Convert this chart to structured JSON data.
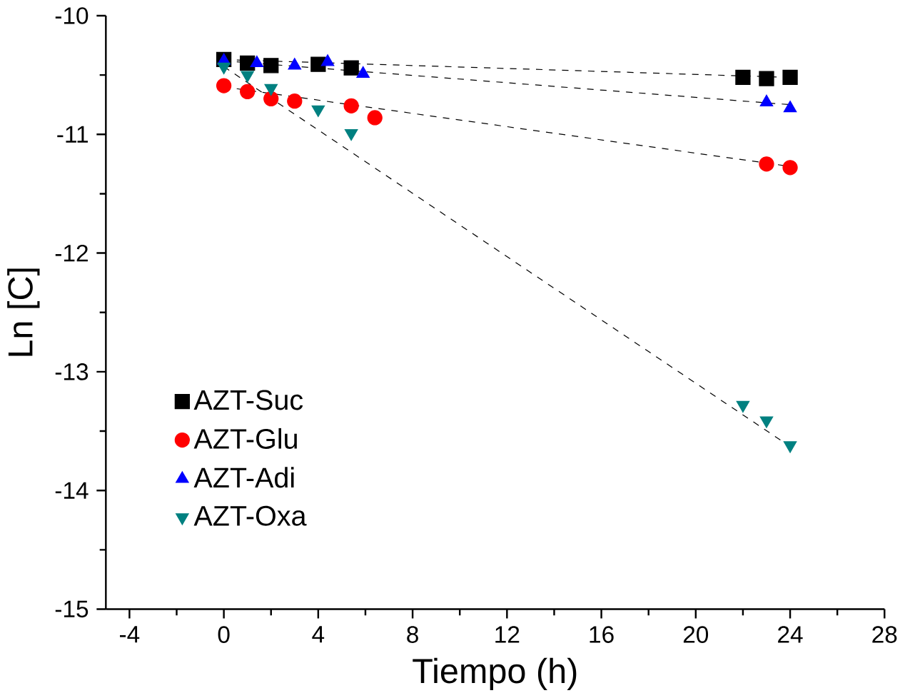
{
  "chart_data": {
    "type": "scatter",
    "xlabel": "Tiempo (h)",
    "ylabel": "Ln [C]",
    "xlim": [
      -5,
      28
    ],
    "ylim": [
      -15,
      -10
    ],
    "xticks": [
      -4,
      0,
      4,
      8,
      12,
      16,
      20,
      24,
      28
    ],
    "yticks": [
      -15,
      -14,
      -13,
      -12,
      -11,
      -10
    ],
    "grid": false,
    "legend": "bottom left",
    "series": [
      {
        "name": "AZT-Suc",
        "color": "#000000",
        "marker": "square",
        "x": [
          0,
          1,
          2,
          4,
          5.4,
          22,
          23,
          24
        ],
        "values": [
          -10.37,
          -10.4,
          -10.42,
          -10.41,
          -10.44,
          -10.52,
          -10.53,
          -10.52
        ]
      },
      {
        "name": "AZT-Glu",
        "color": "#ff0000",
        "marker": "circle",
        "x": [
          0,
          1,
          2,
          3,
          5.4,
          6.4,
          23,
          24
        ],
        "values": [
          -10.59,
          -10.64,
          -10.7,
          -10.72,
          -10.76,
          -10.86,
          -11.25,
          -11.28
        ]
      },
      {
        "name": "AZT-Adi",
        "color": "#0000ff",
        "marker": "triangle",
        "x": [
          0,
          1.4,
          3,
          4.4,
          5.9,
          23,
          24
        ],
        "values": [
          -10.38,
          -10.4,
          -10.42,
          -10.39,
          -10.49,
          -10.73,
          -10.78
        ]
      },
      {
        "name": "AZT-Oxa",
        "color": "#008080",
        "marker": "triangle down",
        "x": [
          0,
          1,
          2,
          4,
          5.4,
          22,
          23,
          24
        ],
        "values": [
          -10.43,
          -10.5,
          -10.61,
          -10.79,
          -10.99,
          -13.28,
          -13.41,
          -13.62
        ]
      },
      {
        "type": "line",
        "color": "#000000",
        "marker": "none",
        "line_style": "dashed",
        "x": [
          0,
          24
        ],
        "values": [
          -10.37,
          -10.52
        ]
      },
      {
        "type": "line",
        "color": "#000000",
        "marker": "none",
        "line_style": "dashed",
        "x": [
          0,
          24
        ],
        "values": [
          -10.6,
          -11.27
        ]
      },
      {
        "type": "line",
        "color": "#000000",
        "marker": "none",
        "line_style": "dashed",
        "x": [
          0,
          24
        ],
        "values": [
          -10.38,
          -10.75
        ]
      },
      {
        "type": "line",
        "color": "#000000",
        "marker": "none",
        "line_style": "dashed",
        "x": [
          0,
          24
        ],
        "values": [
          -10.43,
          -13.63
        ]
      }
    ]
  }
}
